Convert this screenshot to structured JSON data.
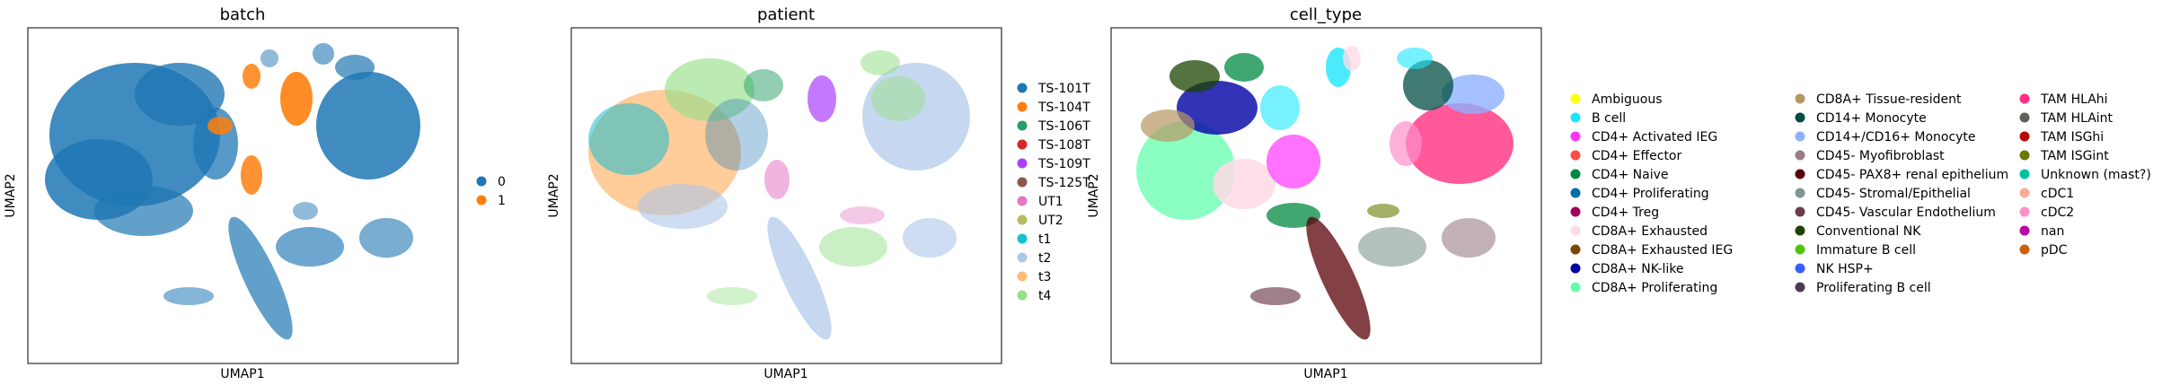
{
  "panels": [
    {
      "title": "batch",
      "xlabel": "UMAP1",
      "ylabel": "UMAP2",
      "legend": [
        {
          "label": "0",
          "color": "#1f77b4"
        },
        {
          "label": "1",
          "color": "#ff7f0e"
        }
      ]
    },
    {
      "title": "patient",
      "xlabel": "UMAP1",
      "ylabel": "UMAP2",
      "legend": [
        {
          "label": "TS-101T",
          "color": "#1f77b4"
        },
        {
          "label": "TS-104T",
          "color": "#ff7f0e"
        },
        {
          "label": "TS-106T",
          "color": "#279e68"
        },
        {
          "label": "TS-108T",
          "color": "#d62728"
        },
        {
          "label": "TS-109T",
          "color": "#aa40fc"
        },
        {
          "label": "TS-125T",
          "color": "#8c564b"
        },
        {
          "label": "UT1",
          "color": "#e377c2"
        },
        {
          "label": "UT2",
          "color": "#b5bd61"
        },
        {
          "label": "t1",
          "color": "#17becf"
        },
        {
          "label": "t2",
          "color": "#aec7e8"
        },
        {
          "label": "t3",
          "color": "#ffbb78"
        },
        {
          "label": "t4",
          "color": "#98df8a"
        }
      ]
    },
    {
      "title": "cell_type",
      "xlabel": "UMAP1",
      "ylabel": "UMAP2",
      "legend": [
        {
          "label": "Ambiguous",
          "color": "#ffff00"
        },
        {
          "label": "B cell",
          "color": "#1ce6ff"
        },
        {
          "label": "CD4+ Activated IEG",
          "color": "#ff34ff"
        },
        {
          "label": "CD4+ Effector",
          "color": "#ff4a46"
        },
        {
          "label": "CD4+ Naive",
          "color": "#008941"
        },
        {
          "label": "CD4+ Proliferating",
          "color": "#006fa6"
        },
        {
          "label": "CD4+ Treg",
          "color": "#a30059"
        },
        {
          "label": "CD8A+ Exhausted",
          "color": "#ffdbe5"
        },
        {
          "label": "CD8A+ Exhausted IEG",
          "color": "#7a4900"
        },
        {
          "label": "CD8A+ NK-like",
          "color": "#0000a6"
        },
        {
          "label": "CD8A+ Proliferating",
          "color": "#63ffac"
        },
        {
          "label": "CD8A+ Tissue-resident",
          "color": "#b79762"
        },
        {
          "label": "CD14+ Monocyte",
          "color": "#004d43"
        },
        {
          "label": "CD14+/CD16+ Monocyte",
          "color": "#8fb0ff"
        },
        {
          "label": "CD45- Myofibroblast",
          "color": "#997d87"
        },
        {
          "label": "CD45- PAX8+ renal epithelium",
          "color": "#5a0007"
        },
        {
          "label": "CD45- Stromal/Epithelial",
          "color": "#809693"
        },
        {
          "label": "CD45- Vascular Endothelium",
          "color": "#6a3a4c"
        },
        {
          "label": "Conventional NK",
          "color": "#1b4400"
        },
        {
          "label": "Immature B cell",
          "color": "#4fc601"
        },
        {
          "label": "NK HSP+",
          "color": "#3b5dff"
        },
        {
          "label": "Proliferating B cell",
          "color": "#4a3b53"
        },
        {
          "label": "TAM HLAhi",
          "color": "#ff2f80"
        },
        {
          "label": "TAM HLAint",
          "color": "#61615a"
        },
        {
          "label": "TAM ISGhi",
          "color": "#ba0900"
        },
        {
          "label": "TAM ISGint",
          "color": "#6b7900"
        },
        {
          "label": "Unknown (mast?)",
          "color": "#00c2a0"
        },
        {
          "label": "cDC1",
          "color": "#ffaa92"
        },
        {
          "label": "cDC2",
          "color": "#ff90c9"
        },
        {
          "label": "nan",
          "color": "#b903aa"
        },
        {
          "label": "pDC",
          "color": "#d16100"
        }
      ]
    }
  ],
  "chart_data": [
    {
      "type": "scatter",
      "title": "batch",
      "xlabel": "UMAP1",
      "ylabel": "UMAP2",
      "legend_placement": "right",
      "grid": false,
      "series": [
        {
          "name": "0"
        },
        {
          "name": "1"
        }
      ]
    },
    {
      "type": "scatter",
      "title": "patient",
      "xlabel": "UMAP1",
      "ylabel": "UMAP2",
      "legend_placement": "right",
      "grid": false,
      "series": [
        {
          "name": "TS-101T"
        },
        {
          "name": "TS-104T"
        },
        {
          "name": "TS-106T"
        },
        {
          "name": "TS-108T"
        },
        {
          "name": "TS-109T"
        },
        {
          "name": "TS-125T"
        },
        {
          "name": "UT1"
        },
        {
          "name": "UT2"
        },
        {
          "name": "t1"
        },
        {
          "name": "t2"
        },
        {
          "name": "t3"
        },
        {
          "name": "t4"
        }
      ]
    },
    {
      "type": "scatter",
      "title": "cell_type",
      "xlabel": "UMAP1",
      "ylabel": "UMAP2",
      "legend_placement": "right",
      "grid": false,
      "series": [
        {
          "name": "Ambiguous"
        },
        {
          "name": "B cell"
        },
        {
          "name": "CD4+ Activated IEG"
        },
        {
          "name": "CD4+ Effector"
        },
        {
          "name": "CD4+ Naive"
        },
        {
          "name": "CD4+ Proliferating"
        },
        {
          "name": "CD4+ Treg"
        },
        {
          "name": "CD8A+ Exhausted"
        },
        {
          "name": "CD8A+ Exhausted IEG"
        },
        {
          "name": "CD8A+ NK-like"
        },
        {
          "name": "CD8A+ Proliferating"
        },
        {
          "name": "CD8A+ Tissue-resident"
        },
        {
          "name": "CD14+ Monocyte"
        },
        {
          "name": "CD14+/CD16+ Monocyte"
        },
        {
          "name": "CD45- Myofibroblast"
        },
        {
          "name": "CD45- PAX8+ renal epithelium"
        },
        {
          "name": "CD45- Stromal/Epithelial"
        },
        {
          "name": "CD45- Vascular Endothelium"
        },
        {
          "name": "Conventional NK"
        },
        {
          "name": "Immature B cell"
        },
        {
          "name": "NK HSP+"
        },
        {
          "name": "Proliferating B cell"
        },
        {
          "name": "TAM HLAhi"
        },
        {
          "name": "TAM HLAint"
        },
        {
          "name": "TAM ISGhi"
        },
        {
          "name": "TAM ISGint"
        },
        {
          "name": "Unknown (mast?)"
        },
        {
          "name": "cDC1"
        },
        {
          "name": "cDC2"
        },
        {
          "name": "nan"
        },
        {
          "name": "pDC"
        }
      ]
    }
  ]
}
